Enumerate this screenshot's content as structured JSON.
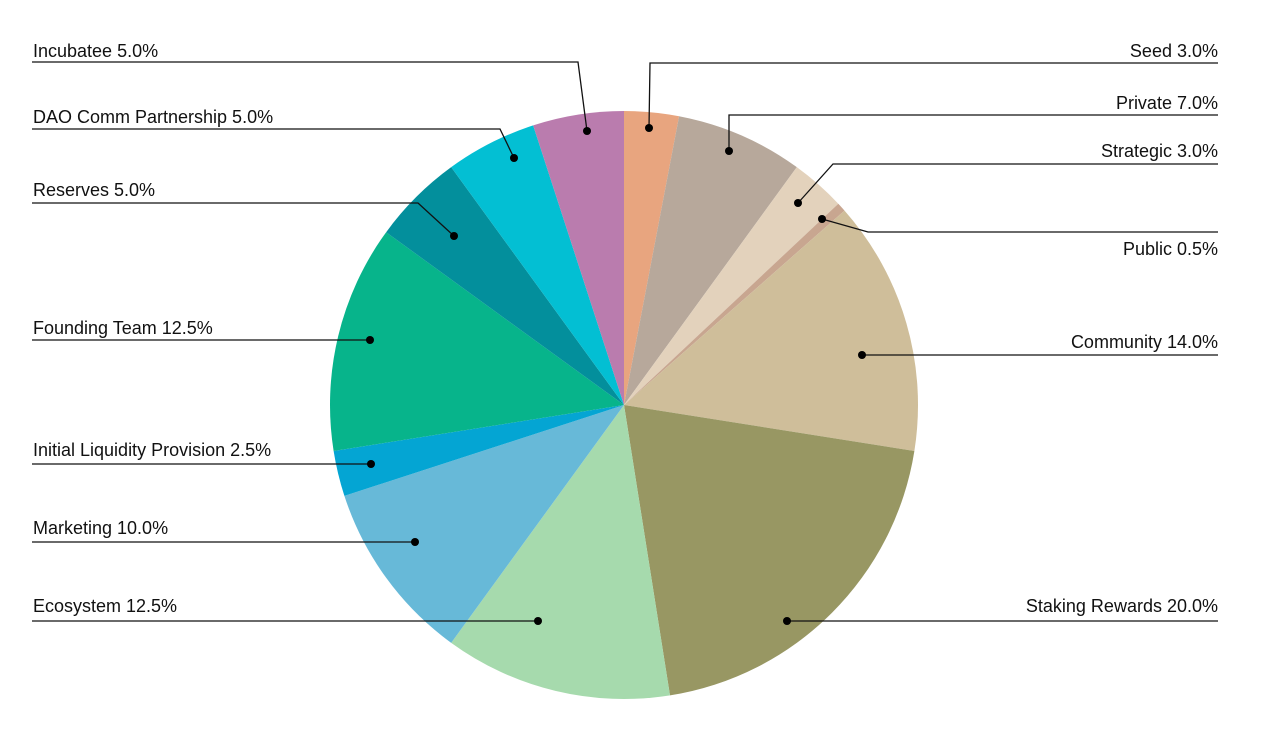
{
  "chart_data": {
    "type": "pie",
    "title": "",
    "slices": [
      {
        "label": "Seed 3.0%",
        "name": "Seed",
        "value": 3.0,
        "color": "#E8A57F"
      },
      {
        "label": "Private 7.0%",
        "name": "Private",
        "value": 7.0,
        "color": "#B7A89B"
      },
      {
        "label": "Strategic 3.0%",
        "name": "Strategic",
        "value": 3.0,
        "color": "#E3D2BC"
      },
      {
        "label": "Public 0.5%",
        "name": "Public",
        "value": 0.5,
        "color": "#C8A690"
      },
      {
        "label": "Community 14.0%",
        "name": "Community",
        "value": 14.0,
        "color": "#CFBE9A"
      },
      {
        "label": "Staking Rewards 20.0%",
        "name": "Staking Rewards",
        "value": 20.0,
        "color": "#989763"
      },
      {
        "label": "Ecosystem 12.5%",
        "name": "Ecosystem",
        "value": 12.5,
        "color": "#A6DAAD"
      },
      {
        "label": "Marketing 10.0%",
        "name": "Marketing",
        "value": 10.0,
        "color": "#67B9D8"
      },
      {
        "label": "Initial Liquidity Provision 2.5%",
        "name": "Initial Liquidity Provision",
        "value": 2.5,
        "color": "#04A5D3"
      },
      {
        "label": "Founding Team 12.5%",
        "name": "Founding Team",
        "value": 12.5,
        "color": "#07B48B"
      },
      {
        "label": "Reserves 5.0%",
        "name": "Reserves",
        "value": 5.0,
        "color": "#038F9C"
      },
      {
        "label": "DAO Comm Partnership 5.0%",
        "name": "DAO Comm Partnership",
        "value": 5.0,
        "color": "#03BFD3"
      },
      {
        "label": "Incubatee 5.0%",
        "name": "Incubatee",
        "value": 5.0,
        "color": "#BA7CAE"
      }
    ]
  }
}
